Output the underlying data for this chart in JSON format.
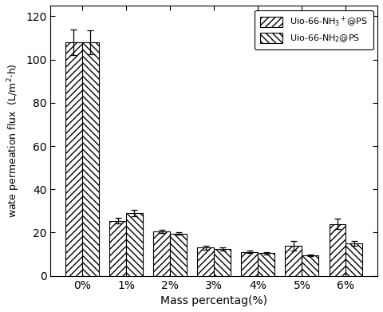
{
  "categories": [
    "0%",
    "1%",
    "2%",
    "3%",
    "4%",
    "5%",
    "6%"
  ],
  "series1_values": [
    108,
    25.5,
    20.5,
    13,
    11,
    14,
    24
  ],
  "series1_errors": [
    6,
    1.2,
    0.7,
    0.8,
    0.5,
    2.2,
    2.5
  ],
  "series2_values": [
    108,
    29,
    19.5,
    12.5,
    10.5,
    9.5,
    15
  ],
  "series2_errors": [
    5.5,
    1.5,
    0.6,
    0.7,
    0.5,
    0.4,
    1.2
  ],
  "legend_label1": "Uio-66-NH$_3$$^+$@PS",
  "legend_label2": "Uio-66-NH$_2$@PS",
  "xlabel": "Mass percentag(%)",
  "ylabel": "wate permeation flux  (L/m$^2$$\\cdot$h)",
  "ylim": [
    0,
    125
  ],
  "yticks": [
    0,
    20,
    40,
    60,
    80,
    100,
    120
  ],
  "bar_color1": "white",
  "bar_color2": "white",
  "hatch1": "////",
  "hatch2": "\\\\\\\\",
  "edgecolor": "#000000",
  "figsize": [
    4.8,
    3.91
  ],
  "dpi": 100
}
